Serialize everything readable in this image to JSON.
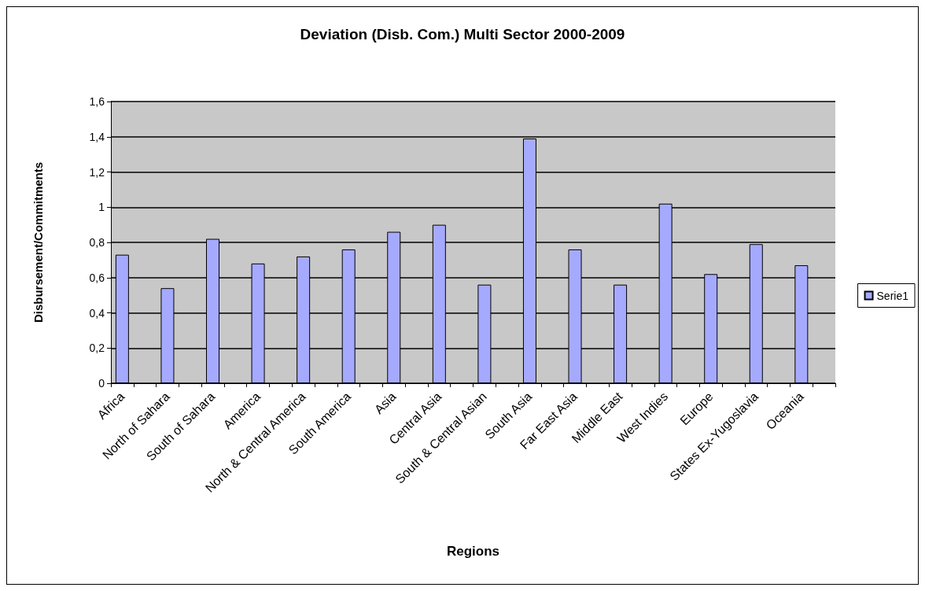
{
  "chart_data": {
    "type": "bar",
    "title": "Deviation (Disb. Com.) Multi Sector 2000-2009",
    "xlabel": "Regions",
    "ylabel": "Disbursement/Commitments",
    "categories": [
      "Africa",
      null,
      "North of Sahara",
      null,
      "South of Sahara",
      null,
      "America",
      null,
      "North & Central America",
      null,
      "South America",
      null,
      "Asia",
      null,
      "Central Asia",
      null,
      "South & Central Asian",
      null,
      "South Asia",
      null,
      "Far East Asia",
      null,
      "Middle East",
      null,
      "West Indies",
      null,
      "Europe",
      null,
      "States Ex-Yugoslavia",
      null,
      "Oceania",
      null
    ],
    "series": [
      {
        "name": "Serie1",
        "color": "#a6aaff",
        "values": [
          0.73,
          null,
          0.54,
          null,
          0.82,
          null,
          0.68,
          null,
          0.72,
          null,
          0.76,
          null,
          0.86,
          null,
          0.9,
          null,
          0.56,
          null,
          1.39,
          null,
          0.76,
          null,
          0.56,
          null,
          1.02,
          null,
          0.62,
          null,
          0.79,
          null,
          0.67,
          null
        ]
      }
    ],
    "ylim": [
      0,
      1.6
    ],
    "yticks": [
      0,
      {
        "value": 0.2,
        "label": "0,2"
      },
      {
        "value": 0.4,
        "label": "0,4"
      },
      {
        "value": 0.6,
        "label": "0,6"
      },
      {
        "value": 0.8,
        "label": "0,8"
      },
      1,
      {
        "value": 1.2,
        "label": "1,2"
      },
      {
        "value": 1.4,
        "label": "1,4"
      },
      {
        "value": 1.6,
        "label": "1,6"
      }
    ],
    "grid": "y",
    "legend": "right"
  }
}
